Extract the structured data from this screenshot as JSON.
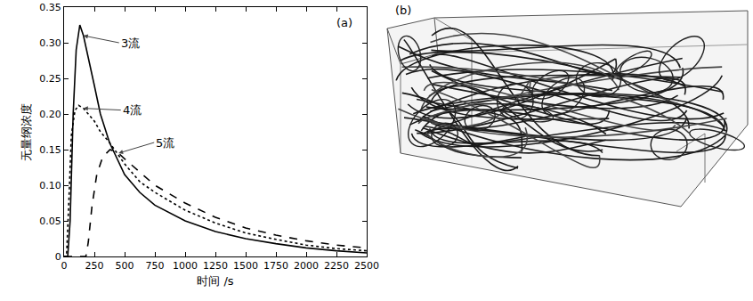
{
  "chart_data": {
    "type": "line",
    "panel_label": "(a)",
    "x_label": "时间 /s",
    "y_label": "无量纲浓度",
    "xlim": [
      0,
      2500
    ],
    "xticks": [
      0,
      250,
      500,
      750,
      1000,
      1250,
      1500,
      1750,
      2000,
      2250,
      2500
    ],
    "ylim": [
      0,
      0.35
    ],
    "yticks": [
      0,
      0.05,
      {
        "value": 0.1,
        "label": "0.10"
      },
      0.15,
      {
        "value": 0.2,
        "label": "0.20"
      },
      0.25,
      {
        "value": 0.3,
        "label": "0.30"
      },
      0.35
    ],
    "grid": false,
    "series": [
      {
        "name": "3流",
        "color": "#000000",
        "line_style": "solid",
        "x": [
          0,
          30,
          50,
          75,
          100,
          130,
          160,
          200,
          250,
          300,
          375,
          500,
          625,
          750,
          1000,
          1250,
          1500,
          1750,
          2000,
          2250,
          2500
        ],
        "values": [
          0,
          0,
          0.05,
          0.2,
          0.29,
          0.325,
          0.31,
          0.28,
          0.24,
          0.2,
          0.16,
          0.115,
          0.09,
          0.072,
          0.05,
          0.035,
          0.025,
          0.018,
          0.012,
          0.008,
          0.005
        ]
      },
      {
        "name": "4流",
        "color": "#000000",
        "line_style": "dotted",
        "x": [
          0,
          20,
          40,
          60,
          90,
          120,
          160,
          200,
          250,
          300,
          375,
          500,
          625,
          750,
          1000,
          1250,
          1500,
          1750,
          2000,
          2250,
          2500
        ],
        "values": [
          0,
          0,
          0.08,
          0.17,
          0.205,
          0.212,
          0.208,
          0.2,
          0.19,
          0.175,
          0.16,
          0.13,
          0.105,
          0.09,
          0.065,
          0.047,
          0.033,
          0.024,
          0.016,
          0.011,
          0.008
        ]
      },
      {
        "name": "5流",
        "color": "#000000",
        "line_style": "dashed",
        "x": [
          0,
          180,
          200,
          230,
          270,
          320,
          380,
          450,
          500,
          625,
          750,
          1000,
          1250,
          1500,
          1750,
          2000,
          2250,
          2500
        ],
        "values": [
          0,
          0,
          0.02,
          0.07,
          0.115,
          0.14,
          0.15,
          0.145,
          0.137,
          0.118,
          0.1,
          0.075,
          0.055,
          0.04,
          0.03,
          0.022,
          0.016,
          0.012
        ]
      }
    ]
  },
  "panel_b": {
    "label": "(b)"
  }
}
